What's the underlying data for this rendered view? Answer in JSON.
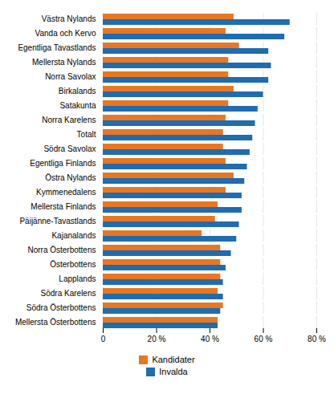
{
  "chart_data": {
    "type": "bar",
    "orientation": "horizontal",
    "categories": [
      "Västra Nylands",
      "Vanda och Kervo",
      "Egentliga Tavastlands",
      "Mellersta Nylands",
      "Norra Savolax",
      "Birkalands",
      "Satakunta",
      "Norra Karelens",
      "Totalt",
      "Södra Savolax",
      "Egentliga Finlands",
      "Östra Nylands",
      "Kymmenedalens",
      "Mellersta Finlands",
      "Päijänne-Tavastlands",
      "Kajanalands",
      "Norra Österbottens",
      "Österbottens",
      "Lapplands",
      "Södra Karelens",
      "Södra Österbottens",
      "Mellersta Österbottens"
    ],
    "series": [
      {
        "name": "Kandidater",
        "color": "#E87722",
        "values": [
          49,
          46,
          51,
          47,
          47,
          49,
          47,
          46,
          45,
          45,
          46,
          49,
          46,
          43,
          42,
          37,
          44,
          44,
          44,
          43,
          45,
          43
        ]
      },
      {
        "name": "Invalda",
        "color": "#1F6CB0",
        "values": [
          70,
          68,
          62,
          63,
          62,
          60,
          58,
          57,
          56,
          55,
          54,
          53,
          52,
          52,
          51,
          50,
          48,
          46,
          45,
          45,
          44,
          43
        ]
      }
    ],
    "xlim": [
      0,
      80
    ],
    "xticks": [
      0,
      {
        "value": 20,
        "label": "20 %"
      },
      {
        "value": 40,
        "label": "40 %"
      },
      {
        "value": 60,
        "label": "60 %"
      },
      {
        "value": 80,
        "label": "80 %"
      }
    ],
    "grid": true,
    "legend": "bottom"
  }
}
